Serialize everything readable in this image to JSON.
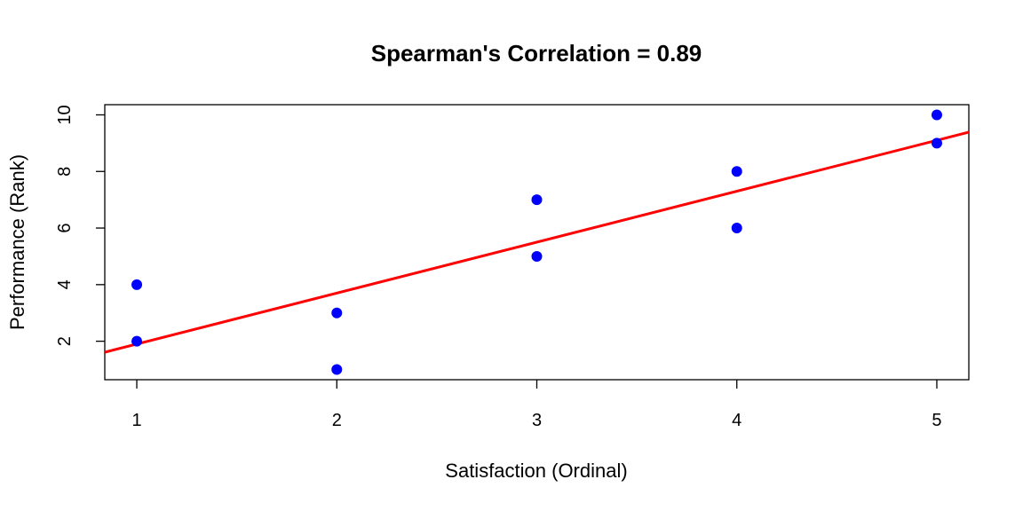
{
  "chart_data": {
    "type": "scatter",
    "title": "Spearman's Correlation = 0.89",
    "xlabel": "Satisfaction (Ordinal)",
    "ylabel": "Performance (Rank)",
    "xlim": [
      0.84,
      5.16
    ],
    "ylim": [
      0.64,
      10.36
    ],
    "x_ticks": [
      "1",
      "2",
      "3",
      "4",
      "5"
    ],
    "y_ticks": [
      "2",
      "4",
      "6",
      "8",
      "10"
    ],
    "grid": false,
    "points": [
      {
        "x": 1,
        "y": 4
      },
      {
        "x": 1,
        "y": 2
      },
      {
        "x": 2,
        "y": 3
      },
      {
        "x": 2,
        "y": 1
      },
      {
        "x": 3,
        "y": 7
      },
      {
        "x": 3,
        "y": 5
      },
      {
        "x": 4,
        "y": 8
      },
      {
        "x": 4,
        "y": 6
      },
      {
        "x": 5,
        "y": 10
      },
      {
        "x": 5,
        "y": 9
      }
    ],
    "fit_line": {
      "intercept": 0.1,
      "slope": 1.8
    },
    "colors": {
      "points": "#0000ff",
      "fit_line": "#ff0000",
      "frame": "#000000"
    }
  }
}
